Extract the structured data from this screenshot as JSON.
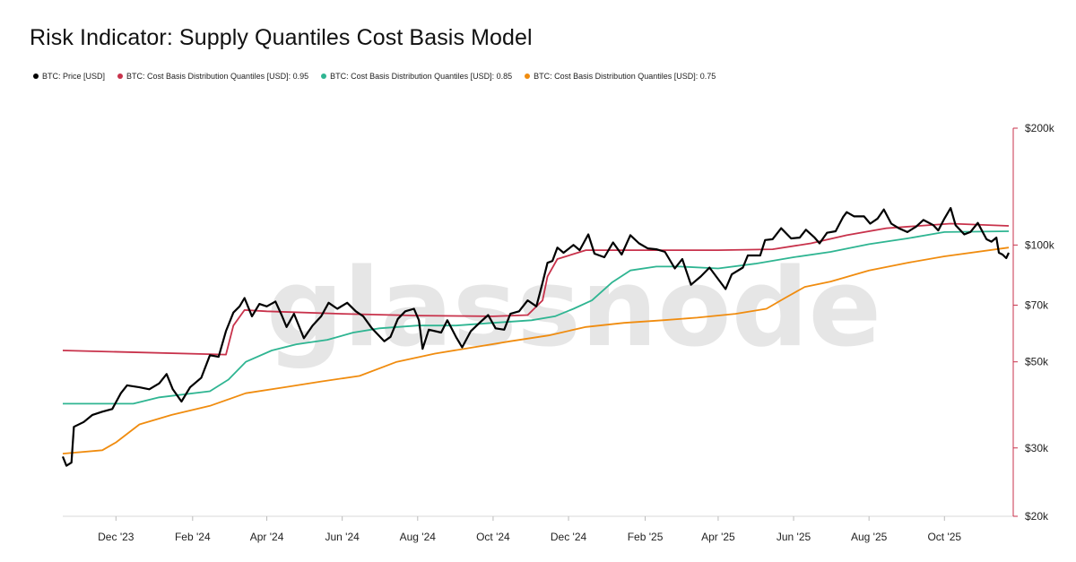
{
  "page": {
    "title": "Risk Indicator: Supply Quantiles Cost Basis Model",
    "watermark": "glassnode"
  },
  "colors": {
    "price": "#000000",
    "q95": "#c8324b",
    "q85": "#2fb592",
    "q75": "#f08c0f",
    "axis_red": "#c8324b"
  },
  "chart_data": {
    "type": "line",
    "title": "Risk Indicator: Supply Quantiles Cost Basis Model",
    "y_scale": "log",
    "ylim": [
      20000,
      200000
    ],
    "xlim": [
      "2023-10-19",
      "2025-11-22"
    ],
    "x_ticks": [
      {
        "date": "2023-12-01",
        "label": "Dec '23"
      },
      {
        "date": "2024-02-01",
        "label": "Feb '24"
      },
      {
        "date": "2024-04-01",
        "label": "Apr '24"
      },
      {
        "date": "2024-06-01",
        "label": "Jun '24"
      },
      {
        "date": "2024-08-01",
        "label": "Aug '24"
      },
      {
        "date": "2024-10-01",
        "label": "Oct '24"
      },
      {
        "date": "2024-12-01",
        "label": "Dec '24"
      },
      {
        "date": "2025-02-01",
        "label": "Feb '25"
      },
      {
        "date": "2025-04-01",
        "label": "Apr '25"
      },
      {
        "date": "2025-06-01",
        "label": "Jun '25"
      },
      {
        "date": "2025-08-01",
        "label": "Aug '25"
      },
      {
        "date": "2025-10-01",
        "label": "Oct '25"
      }
    ],
    "y_ticks": [
      {
        "value": 200000,
        "label": "$200k"
      },
      {
        "value": 100000,
        "label": "$100k"
      },
      {
        "value": 70000,
        "label": "$70k"
      },
      {
        "value": 50000,
        "label": "$50k"
      },
      {
        "value": 30000,
        "label": "$30k"
      },
      {
        "value": 20000,
        "label": "$20k"
      }
    ],
    "series": [
      {
        "name": "BTC: Price [USD]",
        "color": "#000000",
        "width": 2.2,
        "points": [
          [
            "2023-10-19",
            28500
          ],
          [
            "2023-10-22",
            27000
          ],
          [
            "2023-10-26",
            27500
          ],
          [
            "2023-10-28",
            34000
          ],
          [
            "2023-11-05",
            35000
          ],
          [
            "2023-11-12",
            36500
          ],
          [
            "2023-11-20",
            37200
          ],
          [
            "2023-11-28",
            37800
          ],
          [
            "2023-12-05",
            41500
          ],
          [
            "2023-12-10",
            43500
          ],
          [
            "2023-12-20",
            43000
          ],
          [
            "2023-12-28",
            42500
          ],
          [
            "2024-01-05",
            44000
          ],
          [
            "2024-01-11",
            46500
          ],
          [
            "2024-01-16",
            42500
          ],
          [
            "2024-01-23",
            39500
          ],
          [
            "2024-01-30",
            43000
          ],
          [
            "2024-02-08",
            45500
          ],
          [
            "2024-02-15",
            52000
          ],
          [
            "2024-02-22",
            51500
          ],
          [
            "2024-02-28",
            60000
          ],
          [
            "2024-03-05",
            67000
          ],
          [
            "2024-03-10",
            69500
          ],
          [
            "2024-03-14",
            73000
          ],
          [
            "2024-03-20",
            65500
          ],
          [
            "2024-03-26",
            70500
          ],
          [
            "2024-04-01",
            69500
          ],
          [
            "2024-04-08",
            71500
          ],
          [
            "2024-04-13",
            66000
          ],
          [
            "2024-04-17",
            61500
          ],
          [
            "2024-04-23",
            66500
          ],
          [
            "2024-05-01",
            57500
          ],
          [
            "2024-05-08",
            62000
          ],
          [
            "2024-05-15",
            65500
          ],
          [
            "2024-05-21",
            71000
          ],
          [
            "2024-05-28",
            68500
          ],
          [
            "2024-06-05",
            71000
          ],
          [
            "2024-06-12",
            67500
          ],
          [
            "2024-06-18",
            65500
          ],
          [
            "2024-06-25",
            61000
          ],
          [
            "2024-07-05",
            56500
          ],
          [
            "2024-07-10",
            58000
          ],
          [
            "2024-07-16",
            64500
          ],
          [
            "2024-07-22",
            67500
          ],
          [
            "2024-07-29",
            68500
          ],
          [
            "2024-08-02",
            64000
          ],
          [
            "2024-08-05",
            54000
          ],
          [
            "2024-08-10",
            60500
          ],
          [
            "2024-08-20",
            59500
          ],
          [
            "2024-08-25",
            64000
          ],
          [
            "2024-09-01",
            58000
          ],
          [
            "2024-09-06",
            54500
          ],
          [
            "2024-09-13",
            60000
          ],
          [
            "2024-09-20",
            63000
          ],
          [
            "2024-09-27",
            66000
          ],
          [
            "2024-10-03",
            61000
          ],
          [
            "2024-10-10",
            60500
          ],
          [
            "2024-10-15",
            66500
          ],
          [
            "2024-10-22",
            67500
          ],
          [
            "2024-10-29",
            72000
          ],
          [
            "2024-11-05",
            69500
          ],
          [
            "2024-11-10",
            80000
          ],
          [
            "2024-11-14",
            90000
          ],
          [
            "2024-11-18",
            91000
          ],
          [
            "2024-11-22",
            98500
          ],
          [
            "2024-11-27",
            95500
          ],
          [
            "2024-12-05",
            100000
          ],
          [
            "2024-12-10",
            97000
          ],
          [
            "2024-12-17",
            106500
          ],
          [
            "2024-12-22",
            95000
          ],
          [
            "2024-12-30",
            93000
          ],
          [
            "2025-01-06",
            101500
          ],
          [
            "2025-01-13",
            94500
          ],
          [
            "2025-01-20",
            106000
          ],
          [
            "2025-01-27",
            101000
          ],
          [
            "2025-02-03",
            98000
          ],
          [
            "2025-02-10",
            97500
          ],
          [
            "2025-02-17",
            96000
          ],
          [
            "2025-02-25",
            87000
          ],
          [
            "2025-03-03",
            92000
          ],
          [
            "2025-03-10",
            79000
          ],
          [
            "2025-03-18",
            83000
          ],
          [
            "2025-03-25",
            87500
          ],
          [
            "2025-03-31",
            82500
          ],
          [
            "2025-04-07",
            77000
          ],
          [
            "2025-04-12",
            84000
          ],
          [
            "2025-04-21",
            87500
          ],
          [
            "2025-04-25",
            94000
          ],
          [
            "2025-05-05",
            94000
          ],
          [
            "2025-05-09",
            103000
          ],
          [
            "2025-05-15",
            103500
          ],
          [
            "2025-05-22",
            110500
          ],
          [
            "2025-05-30",
            104000
          ],
          [
            "2025-06-06",
            104500
          ],
          [
            "2025-06-11",
            109500
          ],
          [
            "2025-06-18",
            104500
          ],
          [
            "2025-06-22",
            101000
          ],
          [
            "2025-06-28",
            107500
          ],
          [
            "2025-07-05",
            108500
          ],
          [
            "2025-07-11",
            118000
          ],
          [
            "2025-07-14",
            121500
          ],
          [
            "2025-07-20",
            118500
          ],
          [
            "2025-07-28",
            118500
          ],
          [
            "2025-08-02",
            113500
          ],
          [
            "2025-08-08",
            117000
          ],
          [
            "2025-08-13",
            123500
          ],
          [
            "2025-08-19",
            113500
          ],
          [
            "2025-08-25",
            110500
          ],
          [
            "2025-09-01",
            108000
          ],
          [
            "2025-09-08",
            111500
          ],
          [
            "2025-09-14",
            116000
          ],
          [
            "2025-09-22",
            112500
          ],
          [
            "2025-09-26",
            109000
          ],
          [
            "2025-10-01",
            117000
          ],
          [
            "2025-10-06",
            124500
          ],
          [
            "2025-10-10",
            112500
          ],
          [
            "2025-10-17",
            106500
          ],
          [
            "2025-10-22",
            108000
          ],
          [
            "2025-10-28",
            114000
          ],
          [
            "2025-11-04",
            103500
          ],
          [
            "2025-11-08",
            102000
          ],
          [
            "2025-11-12",
            104500
          ],
          [
            "2025-11-14",
            95500
          ],
          [
            "2025-11-17",
            94500
          ],
          [
            "2025-11-20",
            92500
          ],
          [
            "2025-11-22",
            95500
          ]
        ]
      },
      {
        "name": "BTC: Cost Basis Distribution Quantiles [USD]: 0.95",
        "color": "#c8324b",
        "width": 1.8,
        "points": [
          [
            "2023-10-19",
            53500
          ],
          [
            "2024-02-28",
            52200
          ],
          [
            "2024-03-05",
            62000
          ],
          [
            "2024-03-14",
            68000
          ],
          [
            "2024-04-01",
            67500
          ],
          [
            "2024-06-01",
            66500
          ],
          [
            "2024-08-01",
            65800
          ],
          [
            "2024-10-01",
            65500
          ],
          [
            "2024-10-29",
            66000
          ],
          [
            "2024-11-10",
            72000
          ],
          [
            "2024-11-14",
            83000
          ],
          [
            "2024-11-22",
            92000
          ],
          [
            "2024-12-15",
            97000
          ],
          [
            "2025-02-01",
            97000
          ],
          [
            "2025-04-01",
            97000
          ],
          [
            "2025-05-15",
            97500
          ],
          [
            "2025-06-15",
            101000
          ],
          [
            "2025-07-14",
            106000
          ],
          [
            "2025-08-15",
            110500
          ],
          [
            "2025-10-06",
            113500
          ],
          [
            "2025-11-22",
            112000
          ]
        ]
      },
      {
        "name": "BTC: Cost Basis Distribution Quantiles [USD]: 0.85",
        "color": "#2fb592",
        "width": 1.8,
        "points": [
          [
            "2023-10-19",
            39000
          ],
          [
            "2023-12-15",
            39000
          ],
          [
            "2024-01-05",
            40500
          ],
          [
            "2024-02-15",
            42000
          ],
          [
            "2024-03-01",
            45000
          ],
          [
            "2024-03-15",
            50000
          ],
          [
            "2024-04-05",
            53500
          ],
          [
            "2024-04-25",
            55500
          ],
          [
            "2024-05-20",
            57000
          ],
          [
            "2024-06-10",
            59500
          ],
          [
            "2024-07-01",
            61000
          ],
          [
            "2024-08-01",
            62000
          ],
          [
            "2024-09-01",
            62000
          ],
          [
            "2024-10-01",
            63000
          ],
          [
            "2024-11-01",
            64000
          ],
          [
            "2024-11-20",
            65500
          ],
          [
            "2024-12-05",
            68500
          ],
          [
            "2024-12-20",
            72000
          ],
          [
            "2025-01-05",
            80000
          ],
          [
            "2025-01-20",
            86000
          ],
          [
            "2025-02-10",
            88000
          ],
          [
            "2025-03-01",
            88000
          ],
          [
            "2025-04-01",
            87000
          ],
          [
            "2025-05-01",
            89500
          ],
          [
            "2025-06-01",
            93000
          ],
          [
            "2025-07-01",
            96000
          ],
          [
            "2025-08-01",
            100500
          ],
          [
            "2025-09-01",
            104000
          ],
          [
            "2025-10-01",
            108000
          ],
          [
            "2025-11-22",
            108500
          ]
        ]
      },
      {
        "name": "BTC: Cost Basis Distribution Quantiles [USD]: 0.75",
        "color": "#f08c0f",
        "width": 1.8,
        "points": [
          [
            "2023-10-19",
            29000
          ],
          [
            "2023-11-20",
            29600
          ],
          [
            "2023-12-01",
            31000
          ],
          [
            "2023-12-20",
            34500
          ],
          [
            "2024-01-15",
            36500
          ],
          [
            "2024-02-15",
            38500
          ],
          [
            "2024-03-15",
            41500
          ],
          [
            "2024-04-15",
            43000
          ],
          [
            "2024-05-15",
            44500
          ],
          [
            "2024-06-15",
            46000
          ],
          [
            "2024-07-15",
            50000
          ],
          [
            "2024-08-15",
            52500
          ],
          [
            "2024-09-15",
            54500
          ],
          [
            "2024-10-15",
            56500
          ],
          [
            "2024-11-15",
            58500
          ],
          [
            "2024-12-15",
            61500
          ],
          [
            "2025-01-15",
            63000
          ],
          [
            "2025-02-15",
            64000
          ],
          [
            "2025-03-15",
            65000
          ],
          [
            "2025-04-15",
            66500
          ],
          [
            "2025-05-10",
            68500
          ],
          [
            "2025-05-25",
            73000
          ],
          [
            "2025-06-10",
            78000
          ],
          [
            "2025-07-01",
            80500
          ],
          [
            "2025-08-01",
            86000
          ],
          [
            "2025-09-01",
            90000
          ],
          [
            "2025-10-01",
            93500
          ],
          [
            "2025-11-22",
            98500
          ]
        ]
      }
    ],
    "legend": [
      {
        "label": "BTC: Price [USD]",
        "color": "#000000"
      },
      {
        "label": "BTC: Cost Basis Distribution Quantiles [USD]: 0.95",
        "color": "#c8324b"
      },
      {
        "label": "BTC: Cost Basis Distribution Quantiles [USD]: 0.85",
        "color": "#2fb592"
      },
      {
        "label": "BTC: Cost Basis Distribution Quantiles [USD]: 0.75",
        "color": "#f08c0f"
      }
    ]
  }
}
